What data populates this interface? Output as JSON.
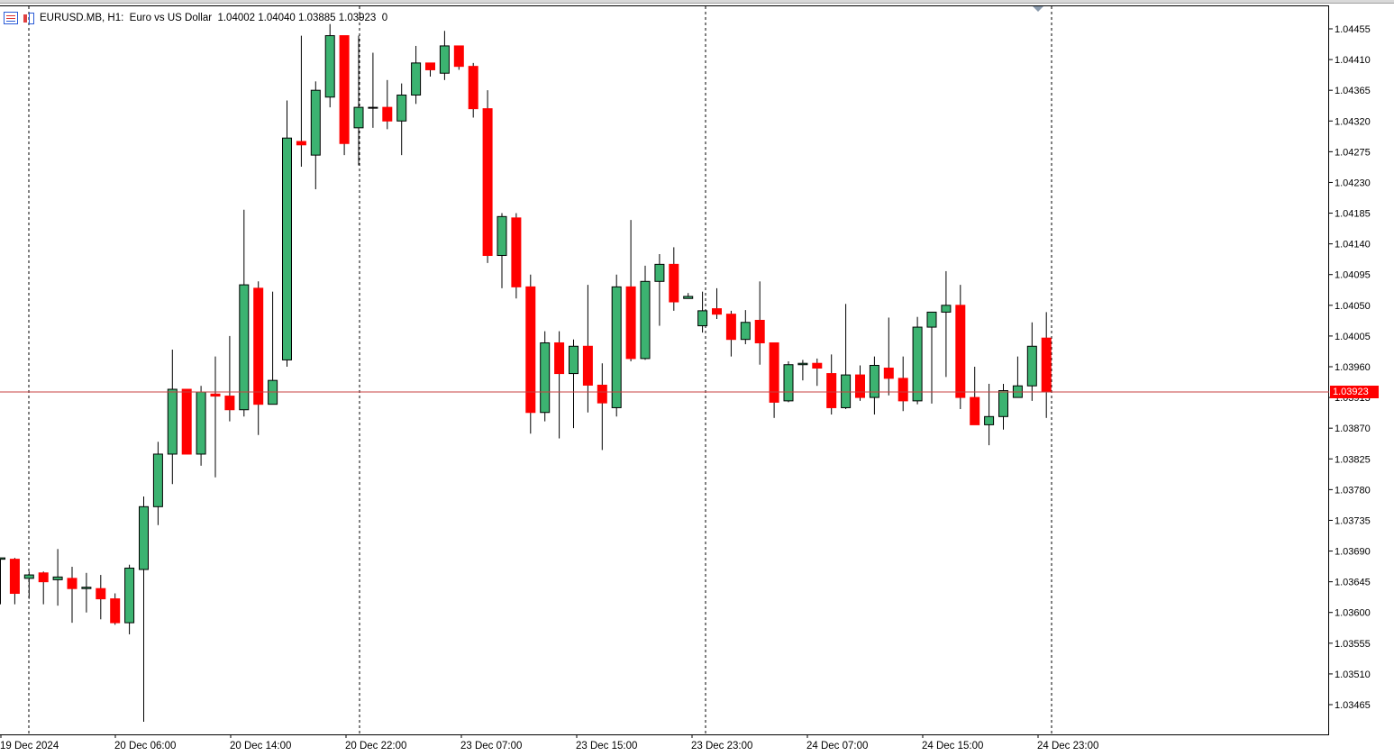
{
  "chart_header": {
    "symbol_text": "EURUSD.MB, H1:  Euro vs US Dollar  1.04002 1.04040 1.03885 1.03923  0",
    "symbol": "EURUSD.MB",
    "timeframe": "H1",
    "description": "Euro vs US Dollar",
    "open": "1.04002",
    "high": "1.04040",
    "low": "1.03885",
    "close": "1.03923",
    "volume": "0"
  },
  "icons": {
    "chart_list": "table-icon",
    "chart_type": "candles-icon"
  },
  "colors": {
    "bull": "#3cb371",
    "bear": "#ff0000",
    "wick": "#000000",
    "price_line": "#c84040",
    "background": "#ffffff"
  },
  "current_price_label": "1.03923",
  "chart_data": {
    "type": "candlestick",
    "title": "EURUSD.MB, H1",
    "y_ticks": [
      "1.04455",
      "1.04410",
      "1.04365",
      "1.04320",
      "1.04275",
      "1.04230",
      "1.04185",
      "1.04140",
      "1.04095",
      "1.04050",
      "1.04005",
      "1.03960",
      "1.03913",
      "1.03870",
      "1.03825",
      "1.03780",
      "1.03735",
      "1.03690",
      "1.03645",
      "1.03600",
      "1.03555",
      "1.03510",
      "1.03465"
    ],
    "x_ticks": [
      "19 Dec 2024",
      "20 Dec 06:00",
      "20 Dec 14:00",
      "20 Dec 22:00",
      "23 Dec 07:00",
      "23 Dec 15:00",
      "23 Dec 23:00",
      "24 Dec 07:00",
      "24 Dec 15:00",
      "24 Dec 23:00"
    ],
    "ylim": [
      1.0344,
      1.04475
    ],
    "grid": false,
    "period_separators": [
      "19 Dec 2024",
      "20 Dec 22:00",
      "23 Dec 23:00",
      "24 Dec 23:00"
    ],
    "current_price": 1.03923,
    "ohlc": [
      [
        1.03678,
        1.0368,
        1.03612,
        1.0368
      ],
      [
        1.03678,
        1.0368,
        1.03612,
        1.03628
      ],
      [
        1.0365,
        1.0366,
        1.0362,
        1.03655
      ],
      [
        1.03658,
        1.0366,
        1.03612,
        1.03645
      ],
      [
        1.03648,
        1.03693,
        1.0361,
        1.03652
      ],
      [
        1.0365,
        1.03667,
        1.03585,
        1.03635
      ],
      [
        1.03635,
        1.03658,
        1.036,
        1.03637
      ],
      [
        1.03635,
        1.03655,
        1.0359,
        1.0362
      ],
      [
        1.0362,
        1.03628,
        1.03582,
        1.03585
      ],
      [
        1.03585,
        1.0367,
        1.03568,
        1.03665
      ],
      [
        1.03663,
        1.0377,
        1.0344,
        1.03755
      ],
      [
        1.03755,
        1.0385,
        1.03728,
        1.03832
      ],
      [
        1.03832,
        1.03985,
        1.03788,
        1.03927
      ],
      [
        1.03927,
        1.03925,
        1.0384,
        1.03832
      ],
      [
        1.03832,
        1.03932,
        1.03815,
        1.03923
      ],
      [
        1.0392,
        1.03975,
        1.03798,
        1.03917
      ],
      [
        1.03917,
        1.04005,
        1.0388,
        1.03897
      ],
      [
        1.03897,
        1.0419,
        1.03887,
        1.0408
      ],
      [
        1.04075,
        1.04085,
        1.0386,
        1.03905
      ],
      [
        1.03905,
        1.0407,
        1.0391,
        1.0394
      ],
      [
        1.0397,
        1.0435,
        1.0396,
        1.04295
      ],
      [
        1.0429,
        1.04445,
        1.04253,
        1.04285
      ],
      [
        1.0427,
        1.04378,
        1.0422,
        1.04365
      ],
      [
        1.04355,
        1.04462,
        1.0434,
        1.04445
      ],
      [
        1.04445,
        1.0444,
        1.0427,
        1.04287
      ],
      [
        1.0431,
        1.04445,
        1.04255,
        1.0434
      ],
      [
        1.0434,
        1.0442,
        1.0431,
        1.0434
      ],
      [
        1.0434,
        1.0438,
        1.04308,
        1.0432
      ],
      [
        1.0432,
        1.04375,
        1.0427,
        1.04358
      ],
      [
        1.04358,
        1.0443,
        1.04345,
        1.04405
      ],
      [
        1.04405,
        1.04402,
        1.04385,
        1.04395
      ],
      [
        1.0439,
        1.04452,
        1.0438,
        1.0443
      ],
      [
        1.0443,
        1.04425,
        1.04395,
        1.044
      ],
      [
        1.044,
        1.04405,
        1.04325,
        1.04338
      ],
      [
        1.04338,
        1.04365,
        1.04112,
        1.04123
      ],
      [
        1.04123,
        1.04185,
        1.04075,
        1.0418
      ],
      [
        1.04178,
        1.04185,
        1.0406,
        1.04077
      ],
      [
        1.04077,
        1.04095,
        1.03862,
        1.03893
      ],
      [
        1.03893,
        1.04012,
        1.0388,
        1.03995
      ],
      [
        1.03995,
        1.04012,
        1.03855,
        1.0395
      ],
      [
        1.0395,
        1.04,
        1.0387,
        1.0399
      ],
      [
        1.0399,
        1.0408,
        1.03893,
        1.03933
      ],
      [
        1.03933,
        1.03965,
        1.03838,
        1.03907
      ],
      [
        1.039,
        1.04095,
        1.03887,
        1.04077
      ],
      [
        1.04077,
        1.04175,
        1.03968,
        1.03972
      ],
      [
        1.03972,
        1.04108,
        1.0397,
        1.04085
      ],
      [
        1.04085,
        1.04125,
        1.0402,
        1.0411
      ],
      [
        1.0411,
        1.04135,
        1.04042,
        1.04055
      ],
      [
        1.0406,
        1.04068,
        1.0406,
        1.04063
      ],
      [
        1.0402,
        1.0407,
        1.0401,
        1.04042
      ],
      [
        1.04045,
        1.04075,
        1.0403,
        1.04037
      ],
      [
        1.04037,
        1.04042,
        1.03975,
        1.04
      ],
      [
        1.04,
        1.04043,
        1.03993,
        1.04025
      ],
      [
        1.04028,
        1.04085,
        1.03963,
        1.03995
      ],
      [
        1.03995,
        1.03993,
        1.03885,
        1.03908
      ],
      [
        1.0391,
        1.03968,
        1.03908,
        1.03963
      ],
      [
        1.03963,
        1.0397,
        1.0394,
        1.03965
      ],
      [
        1.03965,
        1.03972,
        1.03932,
        1.03958
      ],
      [
        1.0395,
        1.03978,
        1.0389,
        1.039
      ],
      [
        1.039,
        1.04052,
        1.03898,
        1.03948
      ],
      [
        1.03948,
        1.03962,
        1.0391,
        1.03915
      ],
      [
        1.03915,
        1.03975,
        1.0389,
        1.03962
      ],
      [
        1.03958,
        1.04032,
        1.03918,
        1.03943
      ],
      [
        1.03943,
        1.03975,
        1.03895,
        1.0391
      ],
      [
        1.0391,
        1.04033,
        1.03905,
        1.04018
      ],
      [
        1.04018,
        1.04038,
        1.03906,
        1.0404
      ],
      [
        1.0404,
        1.041,
        1.03945,
        1.0405
      ],
      [
        1.0405,
        1.0408,
        1.03898,
        1.03915
      ],
      [
        1.03915,
        1.0396,
        1.03875,
        1.03875
      ],
      [
        1.03875,
        1.03935,
        1.03845,
        1.03887
      ],
      [
        1.03887,
        1.03935,
        1.03868,
        1.03925
      ],
      [
        1.03915,
        1.03975,
        1.03918,
        1.03932
      ],
      [
        1.03932,
        1.04025,
        1.0391,
        1.0399
      ],
      [
        1.04002,
        1.0404,
        1.03885,
        1.03923
      ]
    ]
  }
}
